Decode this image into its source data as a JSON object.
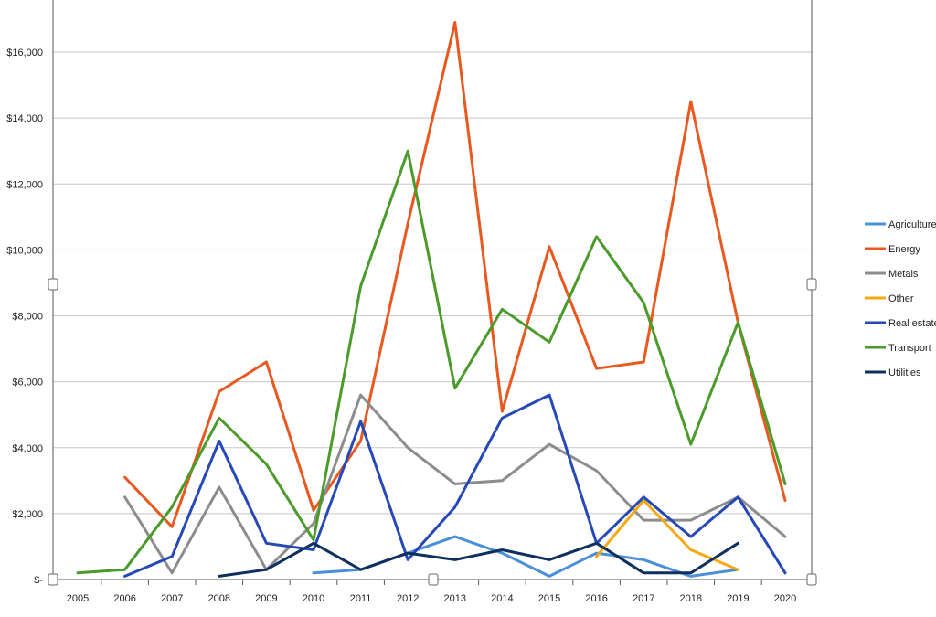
{
  "chart_data": {
    "type": "line",
    "x": [
      2005,
      2006,
      2007,
      2008,
      2009,
      2010,
      2011,
      2012,
      2013,
      2014,
      2015,
      2016,
      2017,
      2018,
      2019,
      2020
    ],
    "x_tick_labels": [
      "2005",
      "2006",
      "2007",
      "2008",
      "2009",
      "2010",
      "2011",
      "2012",
      "2013",
      "2014",
      "2015",
      "2016",
      "2017",
      "2018",
      "2019",
      "2020"
    ],
    "ylim": [
      0,
      16000
    ],
    "y_ticks": [
      0,
      2000,
      4000,
      6000,
      8000,
      10000,
      12000,
      14000,
      16000
    ],
    "y_tick_labels": [
      "$-",
      "$2,000",
      "$4,000",
      "$6,000",
      "$8,000",
      "$10,000",
      "$12,000",
      "$14,000",
      "$16,000"
    ],
    "grid": true,
    "legend_position": "right",
    "series": [
      {
        "name": "Agriculture",
        "color": "#4a8fd8",
        "values": [
          null,
          null,
          null,
          null,
          null,
          200,
          300,
          800,
          1300,
          800,
          100,
          800,
          600,
          100,
          300,
          null
        ]
      },
      {
        "name": "Energy",
        "color": "#e8581f",
        "values": [
          null,
          3100,
          1600,
          5700,
          6600,
          2100,
          4200,
          10800,
          16900,
          5100,
          10100,
          6400,
          6600,
          14500,
          7800,
          2400
        ]
      },
      {
        "name": "Metals",
        "color": "#8c8c8c",
        "values": [
          null,
          2500,
          200,
          2800,
          300,
          1700,
          5600,
          4000,
          2900,
          3000,
          4100,
          3300,
          1800,
          1800,
          2500,
          1300
        ]
      },
      {
        "name": "Other",
        "color": "#f5a80f",
        "values": [
          null,
          null,
          null,
          null,
          null,
          null,
          null,
          null,
          null,
          null,
          null,
          700,
          2400,
          900,
          300,
          null
        ]
      },
      {
        "name": "Real estate",
        "color": "#2749b8",
        "values": [
          null,
          100,
          700,
          4200,
          1100,
          900,
          4800,
          600,
          2200,
          4900,
          5600,
          1100,
          2500,
          1300,
          2500,
          200
        ]
      },
      {
        "name": "Transport",
        "color": "#4a9b2a",
        "values": [
          200,
          300,
          2200,
          4900,
          3500,
          1200,
          8900,
          13000,
          5800,
          8200,
          7200,
          10400,
          8400,
          4100,
          7800,
          2900
        ]
      },
      {
        "name": "Utilities",
        "color": "#0f2f5e",
        "values": [
          null,
          null,
          null,
          100,
          300,
          1100,
          300,
          800,
          600,
          900,
          600,
          1100,
          200,
          200,
          1100,
          null
        ]
      }
    ]
  }
}
